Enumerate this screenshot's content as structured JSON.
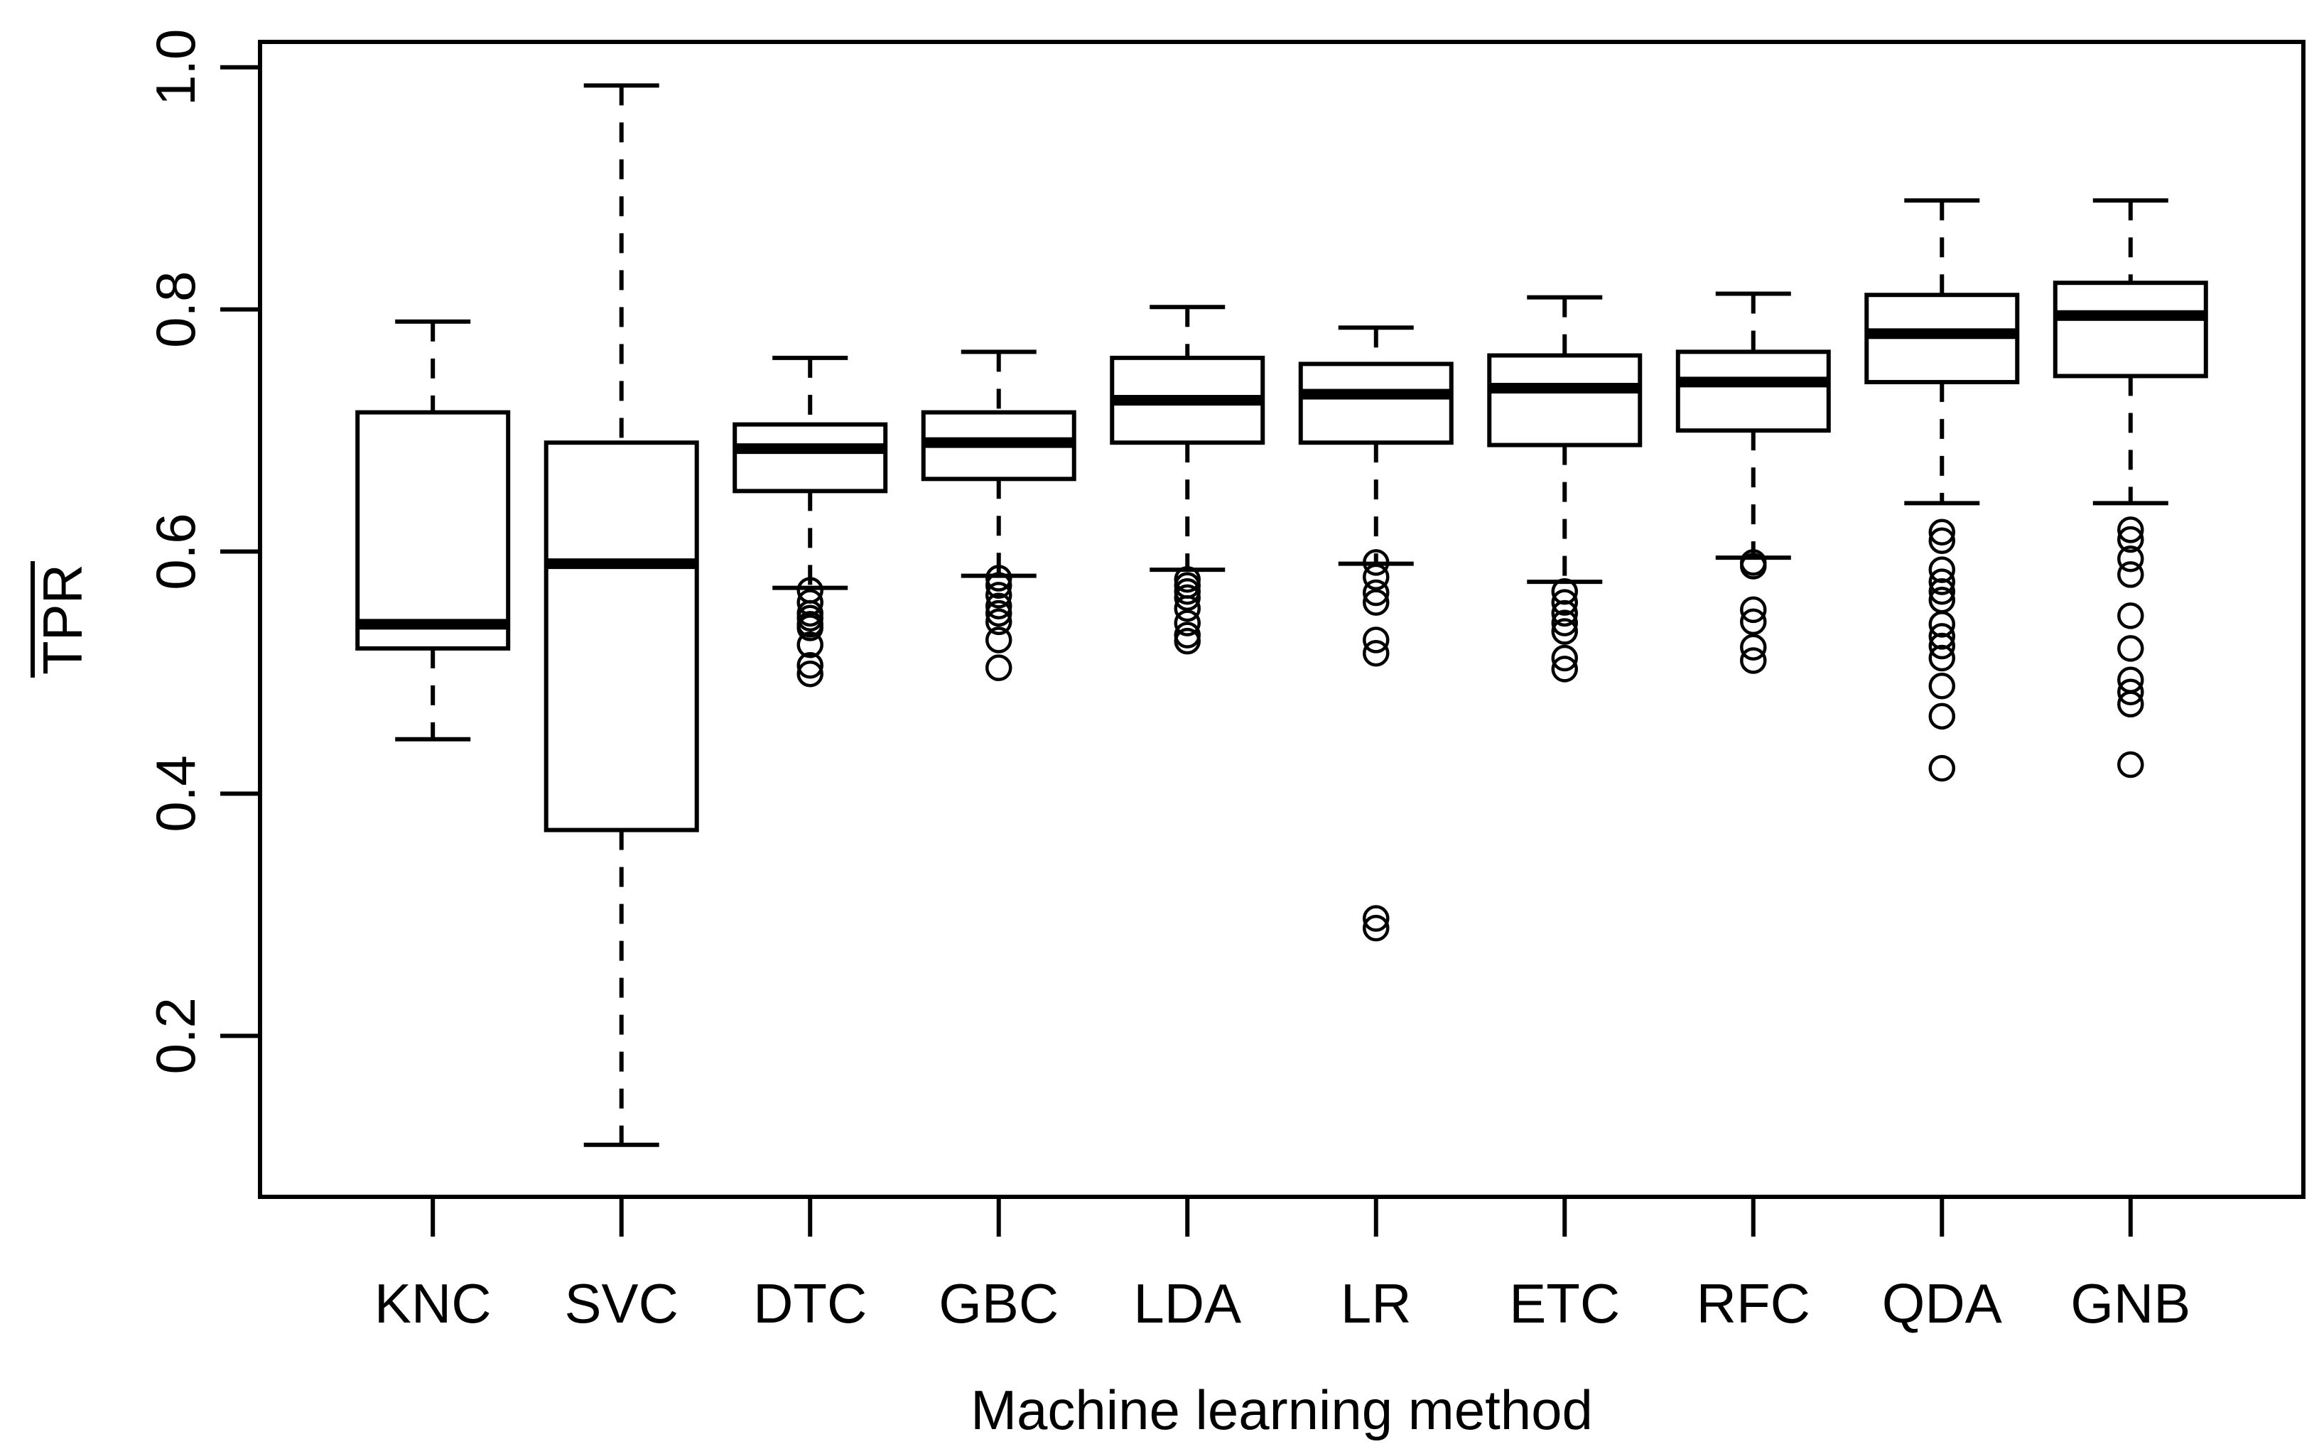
{
  "figure": {
    "background": "#ffffff",
    "ink_color": "#000000"
  },
  "chart_data": {
    "type": "boxplot",
    "title": "",
    "xlabel": "Machine learning method",
    "ylabel": "TPR",
    "ylabel_overline": true,
    "grid": false,
    "legend": null,
    "categories": [
      "KNC",
      "SVC",
      "DTC",
      "GBC",
      "LDA",
      "LR",
      "ETC",
      "RFC",
      "QDA",
      "GNB"
    ],
    "yticks": [
      0.2,
      0.4,
      0.6,
      0.8,
      1.0
    ],
    "ytick_labels": [
      "0.2",
      "0.4",
      "0.6",
      "0.8",
      "1.0"
    ],
    "ylim": [
      0.067,
      1.021
    ],
    "series": [
      {
        "name": "KNC",
        "whisker_low": 0.445,
        "q1": 0.52,
        "median": 0.54,
        "q3": 0.715,
        "whisker_high": 0.79,
        "outliers": []
      },
      {
        "name": "SVC",
        "whisker_low": 0.11,
        "q1": 0.37,
        "median": 0.59,
        "q3": 0.69,
        "whisker_high": 0.985,
        "outliers": []
      },
      {
        "name": "DTC",
        "whisker_low": 0.57,
        "q1": 0.65,
        "median": 0.685,
        "q3": 0.705,
        "whisker_high": 0.76,
        "outliers": [
          0.568,
          0.558,
          0.549,
          0.545,
          0.54,
          0.537,
          0.523,
          0.506,
          0.499
        ]
      },
      {
        "name": "GBC",
        "whisker_low": 0.58,
        "q1": 0.66,
        "median": 0.69,
        "q3": 0.715,
        "whisker_high": 0.765,
        "outliers": [
          0.578,
          0.572,
          0.564,
          0.555,
          0.549,
          0.542,
          0.527,
          0.504
        ]
      },
      {
        "name": "LDA",
        "whisker_low": 0.585,
        "q1": 0.69,
        "median": 0.725,
        "q3": 0.76,
        "whisker_high": 0.802,
        "outliers": [
          0.577,
          0.572,
          0.567,
          0.562,
          0.553,
          0.541,
          0.531,
          0.526
        ]
      },
      {
        "name": "LR",
        "whisker_low": 0.59,
        "q1": 0.69,
        "median": 0.73,
        "q3": 0.755,
        "whisker_high": 0.785,
        "outliers": [
          0.591,
          0.579,
          0.566,
          0.558,
          0.527,
          0.516,
          0.297,
          0.289
        ]
      },
      {
        "name": "ETC",
        "whisker_low": 0.575,
        "q1": 0.688,
        "median": 0.735,
        "q3": 0.762,
        "whisker_high": 0.81,
        "outliers": [
          0.567,
          0.558,
          0.549,
          0.541,
          0.534,
          0.512,
          0.503
        ]
      },
      {
        "name": "RFC",
        "whisker_low": 0.595,
        "q1": 0.7,
        "median": 0.74,
        "q3": 0.765,
        "whisker_high": 0.813,
        "outliers": [
          0.591,
          0.588,
          0.552,
          0.542,
          0.521,
          0.51
        ]
      },
      {
        "name": "QDA",
        "whisker_low": 0.64,
        "q1": 0.74,
        "median": 0.78,
        "q3": 0.812,
        "whisker_high": 0.89,
        "outliers": [
          0.616,
          0.609,
          0.585,
          0.575,
          0.567,
          0.56,
          0.54,
          0.53,
          0.522,
          0.512,
          0.489,
          0.464,
          0.421
        ]
      },
      {
        "name": "GNB",
        "whisker_low": 0.64,
        "q1": 0.745,
        "median": 0.795,
        "q3": 0.822,
        "whisker_high": 0.89,
        "outliers": [
          0.618,
          0.61,
          0.594,
          0.581,
          0.547,
          0.52,
          0.494,
          0.484,
          0.474,
          0.424
        ]
      }
    ]
  }
}
